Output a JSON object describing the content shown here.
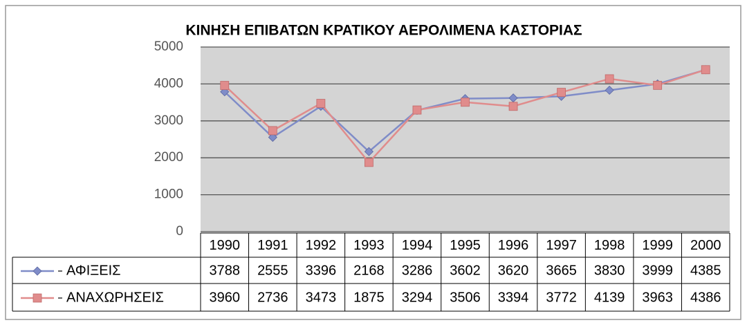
{
  "chart_data": {
    "type": "line",
    "title": "ΚΙΝΗΣΗ ΕΠΙΒΑΤΩΝ ΚΡΑΤΙΚΟΥ ΑΕΡΟΛΙΜΕΝΑ ΚΑΣΤΟΡΙΑΣ",
    "categories": [
      "1990",
      "1991",
      "1992",
      "1993",
      "1994",
      "1995",
      "1996",
      "1997",
      "1998",
      "1999",
      "2000"
    ],
    "series": [
      {
        "name": "ΑΦΙΞΕΙΣ",
        "color": "#7f8cc8",
        "values": [
          3788,
          2555,
          3396,
          2168,
          3286,
          3602,
          3620,
          3665,
          3830,
          3999,
          4385
        ]
      },
      {
        "name": "ΑΝΑΧΩΡΗΣΕΙΣ",
        "color": "#e08c8c",
        "values": [
          3960,
          2736,
          3473,
          1875,
          3294,
          3506,
          3394,
          3772,
          4139,
          3963,
          4386
        ]
      }
    ],
    "ylim": [
      0,
      5000
    ],
    "yticks": [
      0,
      1000,
      2000,
      3000,
      4000,
      5000
    ],
    "grid": true,
    "data_table": true
  }
}
